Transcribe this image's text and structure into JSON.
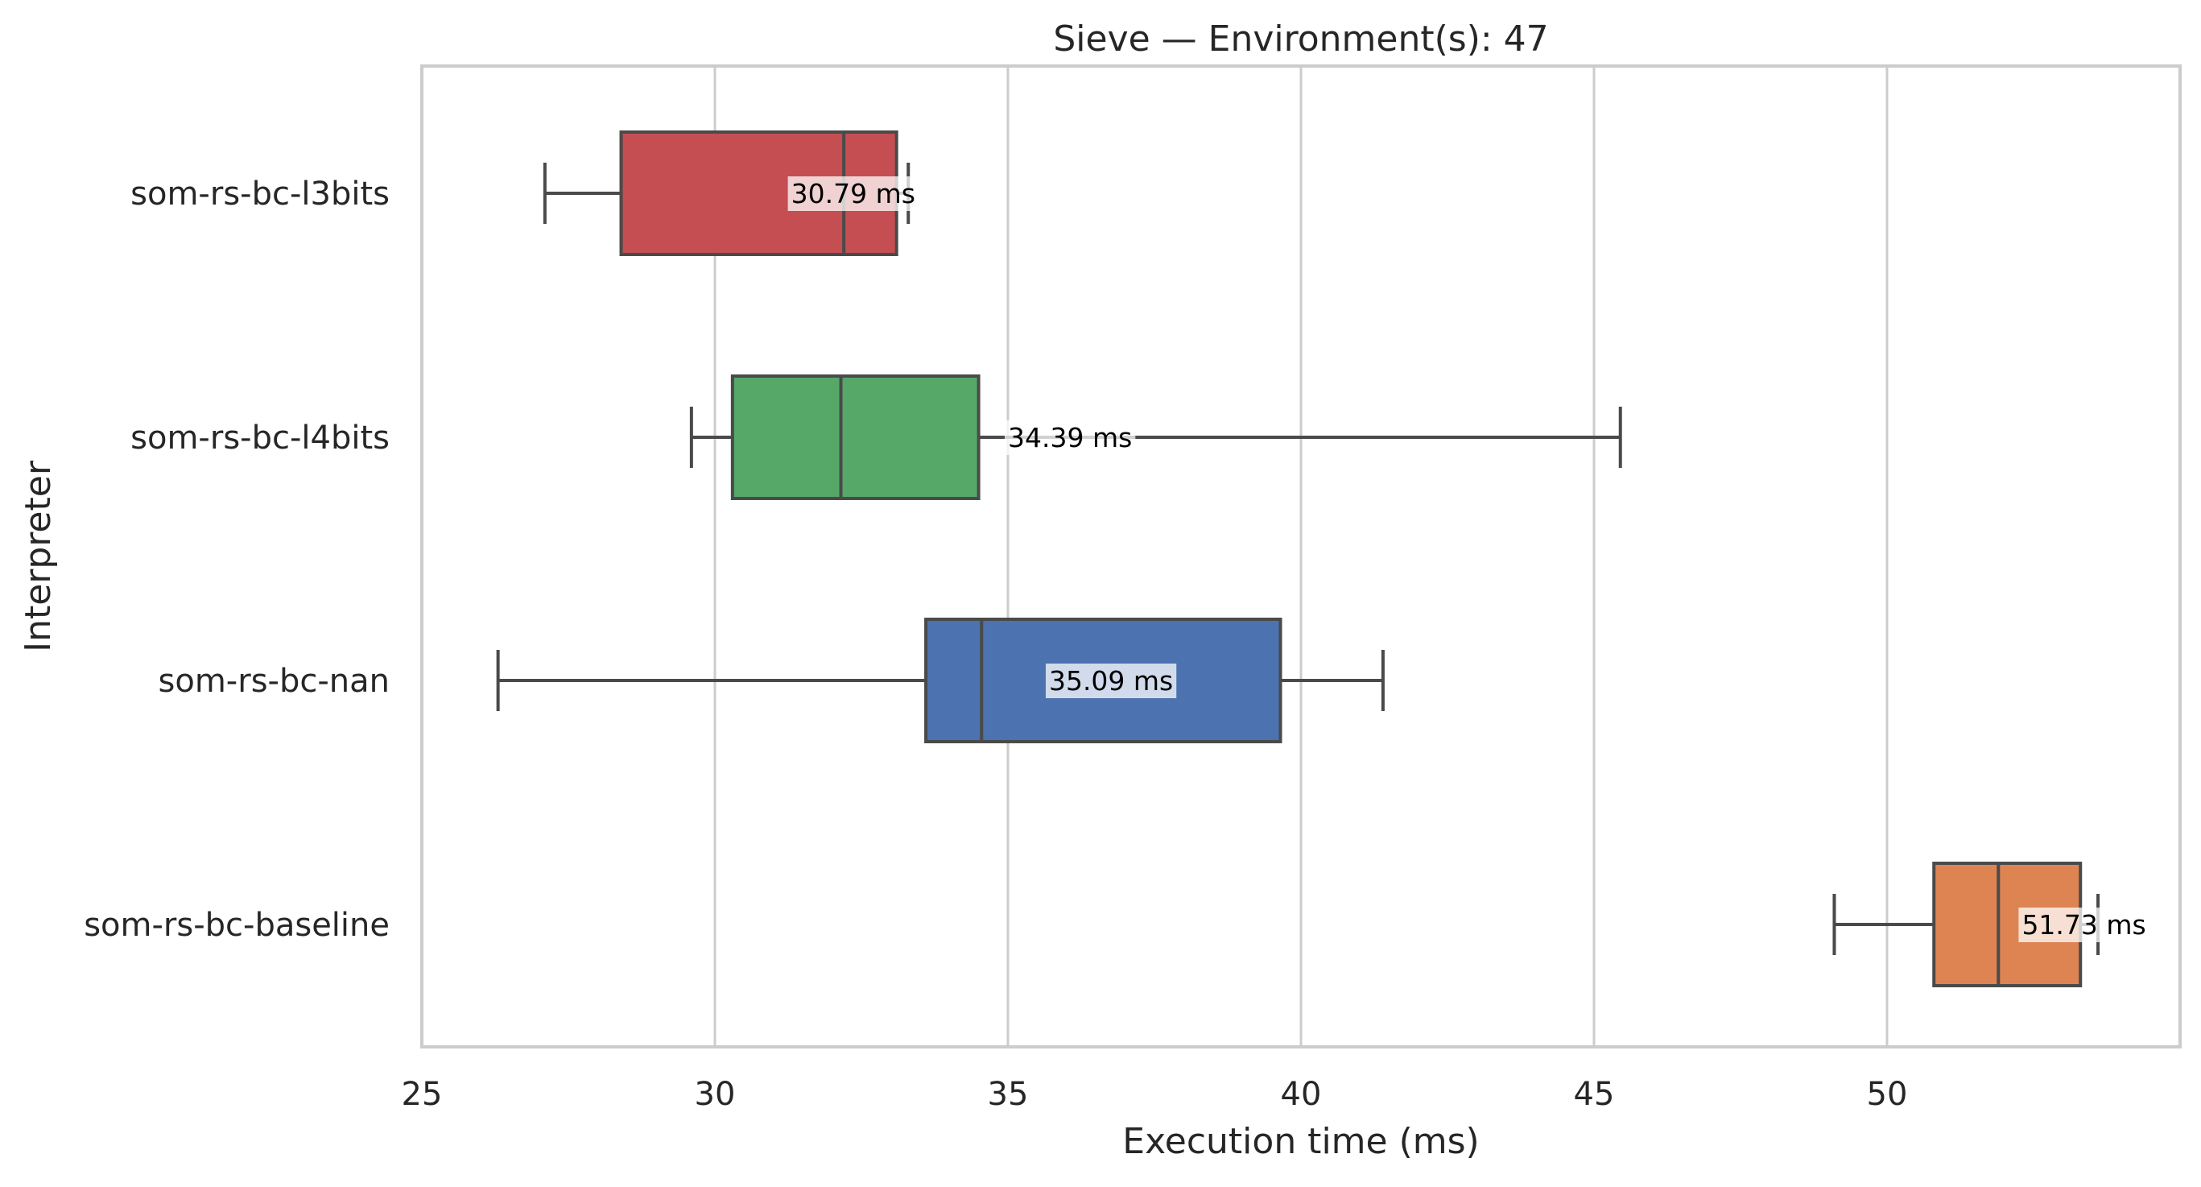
{
  "chart_data": {
    "type": "box",
    "orientation": "horizontal",
    "title": "Sieve — Environment(s): 47",
    "xlabel": "Execution time (ms)",
    "ylabel": "Interpreter",
    "xlim": [
      25,
      55
    ],
    "xticks": [
      25,
      30,
      35,
      40,
      45,
      50
    ],
    "grid": true,
    "legend": "none",
    "series": [
      {
        "name": "som-rs-bc-l3bits",
        "color": "#c44e52",
        "whisker_low": 27.1,
        "q1": 28.4,
        "median": 32.2,
        "q3": 33.1,
        "whisker_high": 33.3,
        "mean_label": "30.79 ms",
        "label_pos": 31.3
      },
      {
        "name": "som-rs-bc-l4bits",
        "color": "#55a868",
        "whisker_low": 29.6,
        "q1": 30.3,
        "median": 32.15,
        "q3": 34.5,
        "whisker_high": 45.45,
        "mean_label": "34.39 ms",
        "label_pos": 35.0
      },
      {
        "name": "som-rs-bc-nan",
        "color": "#4c72b0",
        "whisker_low": 26.3,
        "q1": 33.6,
        "median": 34.55,
        "q3": 39.65,
        "whisker_high": 41.4,
        "mean_label": "35.09 ms",
        "label_pos": 35.7
      },
      {
        "name": "som-rs-bc-baseline",
        "color": "#dd8452",
        "whisker_low": 49.1,
        "q1": 50.8,
        "median": 51.9,
        "q3": 53.3,
        "whisker_high": 53.6,
        "mean_label": "51.73 ms",
        "label_pos": 52.3
      }
    ]
  }
}
